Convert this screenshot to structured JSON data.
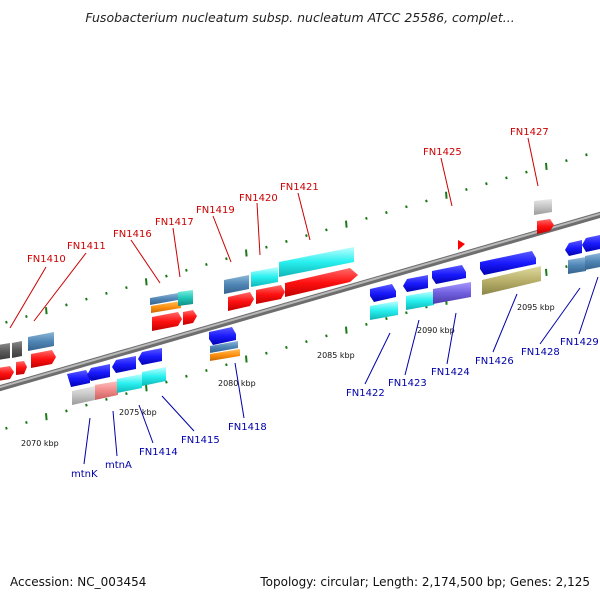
{
  "header": {
    "title": "Fusobacterium nucleatum subsp. nucleatum ATCC 25586, complet..."
  },
  "footer": {
    "accession": "Accession: NC_003454",
    "summary": "Topology: circular; Length: 2,174,500 bp; Genes: 2,125"
  },
  "colors": {
    "upper_label": "#cc0000",
    "lower_label": "#0000aa",
    "backbone": "#8a8a8a",
    "tick": "#1a7a1a"
  },
  "map": {
    "kbp_labels": [
      "2070 kbp",
      "2075 kbp",
      "2080 kbp",
      "2085 kbp",
      "2090 kbp",
      "2095 kbp"
    ],
    "upper_gene_labels": [
      "FN1410",
      "FN1411",
      "FN1416",
      "FN1417",
      "FN1419",
      "FN1420",
      "FN1421",
      "FN1425",
      "FN1427"
    ],
    "lower_gene_labels": [
      "mtnK",
      "mtnA",
      "FN1414",
      "FN1415",
      "FN1418",
      "FN1422",
      "FN1423",
      "FN1424",
      "FN1426",
      "FN1428",
      "FN1429"
    ]
  }
}
